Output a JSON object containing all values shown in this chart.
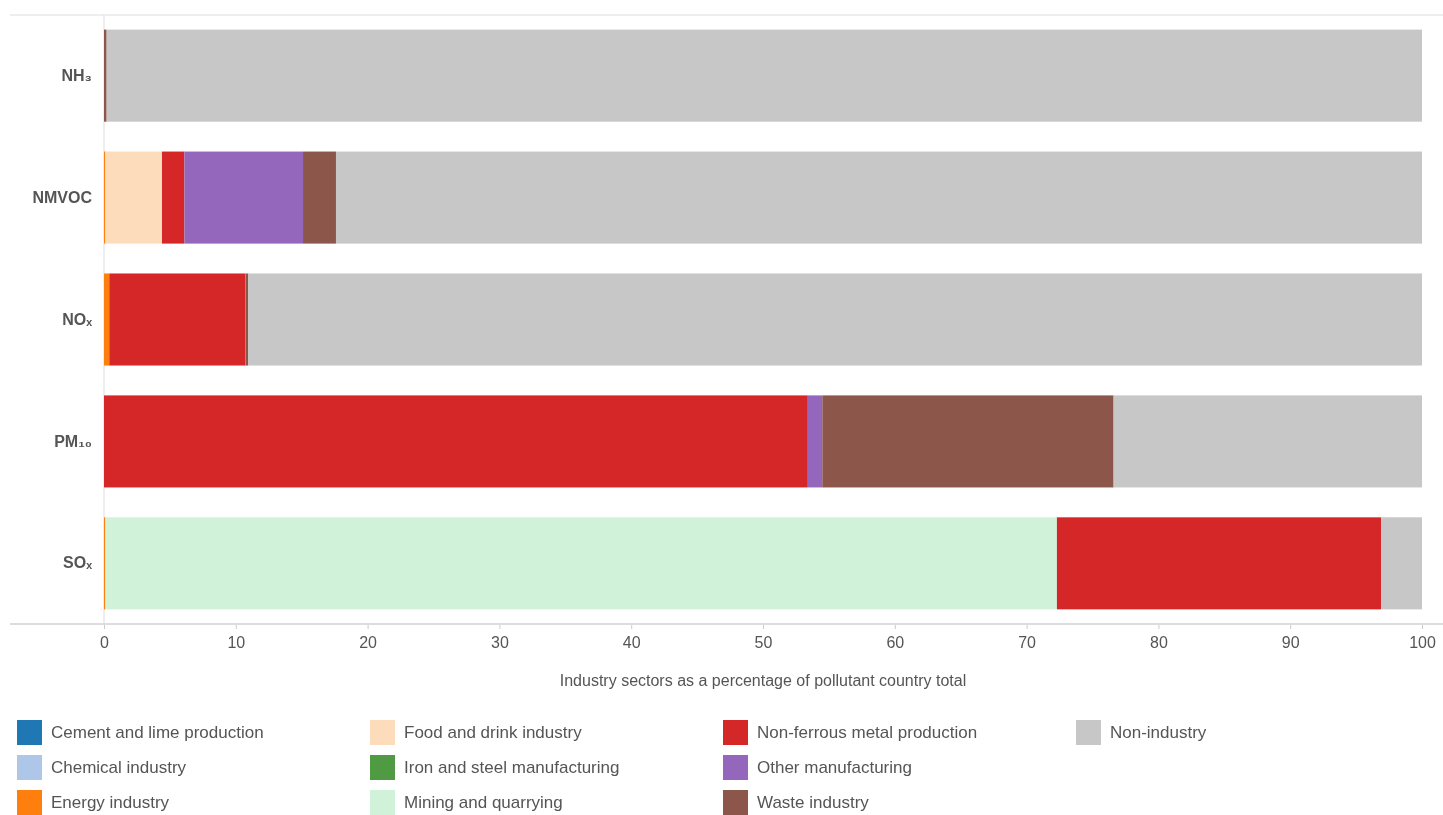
{
  "chart_data": {
    "type": "bar",
    "orientation": "horizontal",
    "stacked": true,
    "xlabel": "Industry sectors as a percentage of pollutant country total",
    "categories": [
      "NH₃",
      "NMVOC",
      "NOₓ",
      "PM₁₀",
      "SOₓ"
    ],
    "xlim": [
      0,
      100
    ],
    "xticks": [
      0,
      10,
      20,
      30,
      40,
      50,
      60,
      70,
      80,
      90,
      100
    ],
    "grid": false,
    "legend": "bottom",
    "series": [
      {
        "name": "Cement and lime production",
        "color": "#1f77b4",
        "values": [
          0,
          0,
          0,
          0,
          0
        ]
      },
      {
        "name": "Chemical industry",
        "color": "#aec7e8",
        "values": [
          0,
          0,
          0,
          0,
          0
        ]
      },
      {
        "name": "Energy industry",
        "color": "#ff7f0e",
        "values": [
          0,
          0.1,
          0.4,
          0,
          0.1
        ]
      },
      {
        "name": "Food and drink industry",
        "color": "#fddcbc",
        "values": [
          0,
          4.3,
          0,
          0,
          0
        ]
      },
      {
        "name": "Iron and steel manufacturing",
        "color": "#4f9a43",
        "values": [
          0,
          0,
          0,
          0,
          0
        ]
      },
      {
        "name": "Mining and quarrying",
        "color": "#cff2d8",
        "values": [
          0,
          0,
          0,
          0,
          72.2
        ]
      },
      {
        "name": "Non-ferrous metal production",
        "color": "#d62728",
        "values": [
          0,
          1.7,
          10.3,
          53.4,
          24.6
        ]
      },
      {
        "name": "Other manufacturing",
        "color": "#9467bd",
        "values": [
          0,
          9,
          0.05,
          1.1,
          0
        ]
      },
      {
        "name": "Waste industry",
        "color": "#8c564b",
        "values": [
          0.2,
          2.5,
          0.2,
          22.1,
          0
        ]
      },
      {
        "name": "Non-industry",
        "color": "#c7c7c7",
        "values": [
          99.8,
          82.4,
          89.05,
          23.4,
          3.1
        ]
      }
    ]
  }
}
